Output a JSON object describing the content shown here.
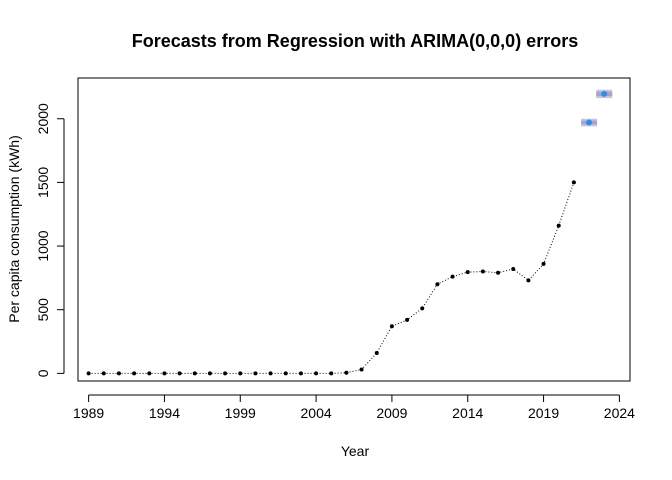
{
  "chart_data": {
    "type": "scatter",
    "title": "Forecasts from Regression with ARIMA(0,0,0) errors",
    "xlabel": "Year",
    "ylabel": "Per capita consumption (kWh)",
    "xlim": [
      1988.3,
      2024.7
    ],
    "ylim": [
      -60,
      2320
    ],
    "x_ticks": [
      1989,
      1994,
      1999,
      2004,
      2009,
      2014,
      2019,
      2024
    ],
    "x_tick_labels": [
      "1989",
      "1994",
      "1999",
      "2004",
      "2009",
      "2014",
      "2019",
      "2024"
    ],
    "y_ticks": [
      0,
      500,
      1000,
      1500,
      2000
    ],
    "y_tick_labels": [
      "0",
      "500",
      "1000",
      "1500",
      "2000"
    ],
    "series": [
      {
        "role": "observed",
        "color": "#000000",
        "x": [
          1989,
          1990,
          1991,
          1992,
          1993,
          1994,
          1995,
          1996,
          1997,
          1998,
          1999,
          2000,
          2001,
          2002,
          2003,
          2004,
          2005,
          2006,
          2007,
          2008,
          2009,
          2010,
          2011,
          2012,
          2013,
          2014,
          2015,
          2016,
          2017,
          2018,
          2019,
          2020,
          2021
        ],
        "y": [
          0,
          0,
          0,
          0,
          0,
          0,
          0,
          0,
          0,
          0,
          0,
          0,
          0,
          0,
          0,
          0,
          0,
          5,
          30,
          160,
          370,
          420,
          510,
          700,
          760,
          795,
          800,
          790,
          820,
          730,
          860,
          1160,
          1500
        ]
      },
      {
        "role": "forecast",
        "color": "#2f8fe0",
        "x": [
          2022,
          2023
        ],
        "y": [
          1970,
          2195
        ],
        "interval80": [
          [
            1955,
            1985
          ],
          [
            2178,
            2212
          ]
        ],
        "interval95": [
          [
            1940,
            2000
          ],
          [
            2162,
            2228
          ]
        ]
      }
    ],
    "interval_color_80": "#a4a4cf",
    "interval_color_95": "#c6c6de",
    "grid": false,
    "legend": "none"
  }
}
